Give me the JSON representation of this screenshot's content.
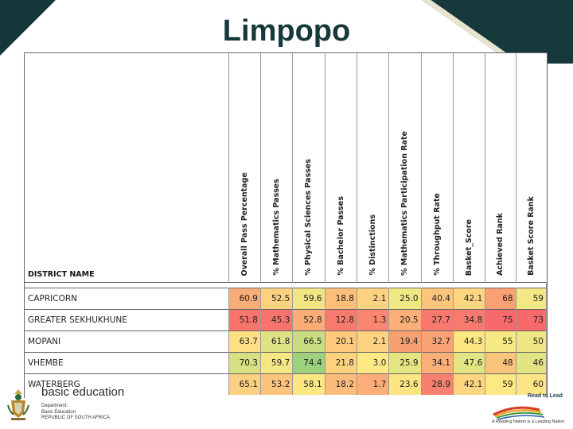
{
  "title": "Limpopo",
  "table": {
    "district_header": "DISTRICT NAME",
    "columns": [
      "Overall  Pass Percentage",
      "% Mathematics Passes",
      "% Physical Sciences Passes",
      "% Bachelor Passes",
      "% Distinctions",
      "% Mathematics Participation Rate",
      "% Throughput Rate",
      "Basket_Score",
      "Achieved Rank",
      "Basket Score Rank"
    ],
    "rows": [
      {
        "name": "CAPRICORN",
        "values": [
          "60.9",
          "52.5",
          "59.6",
          "18.8",
          "2.1",
          "25.0",
          "40.4",
          "42.1",
          "68",
          "59"
        ],
        "colors": [
          "#f8ad78",
          "#fcd281",
          "#f2e683",
          "#fcbf7b",
          "#fdd281",
          "#f0e983",
          "#fcc47c",
          "#fed581",
          "#f9a173",
          "#f5e884"
        ]
      },
      {
        "name": "GREATER SEKHUKHUNE",
        "values": [
          "51.8",
          "45.3",
          "52.8",
          "12.8",
          "1.3",
          "20.5",
          "27.7",
          "34.8",
          "75",
          "73"
        ],
        "colors": [
          "#f8746d",
          "#f8736d",
          "#fbac77",
          "#f8796e",
          "#f98670",
          "#fcae78",
          "#f8786e",
          "#f8796e",
          "#f8696b",
          "#f8696b"
        ]
      },
      {
        "name": "MOPANI",
        "values": [
          "63.7",
          "61.8",
          "66.5",
          "20.1",
          "2.1",
          "19.4",
          "32.7",
          "44.3",
          "55",
          "50"
        ],
        "colors": [
          "#fde083",
          "#dfe282",
          "#c7dd80",
          "#fec97d",
          "#fdd281",
          "#f9a073",
          "#f9a274",
          "#fee683",
          "#f7e984",
          "#eee683"
        ]
      },
      {
        "name": "VHEMBE",
        "values": [
          "70.3",
          "59.7",
          "74.4",
          "21.8",
          "3.0",
          "25.9",
          "34.1",
          "47.6",
          "48",
          "46"
        ],
        "colors": [
          "#d6e082",
          "#f4e884",
          "#9dd17e",
          "#fdd380",
          "#ffe984",
          "#e4e483",
          "#fbb078",
          "#e3e483",
          "#fbc47c",
          "#e2e382"
        ]
      },
      {
        "name": "WATERBERG",
        "values": [
          "65.1",
          "53.2",
          "58.1",
          "18.2",
          "1.7",
          "23.6",
          "28.9",
          "42.1",
          "59",
          "60"
        ],
        "colors": [
          "#fbd080",
          "#fcc47c",
          "#fde783",
          "#fcbc7b",
          "#fbae77",
          "#fee583",
          "#f8806f",
          "#fed581",
          "#fde983",
          "#fee583"
        ]
      }
    ]
  },
  "footer": {
    "brand_line1": "basic education",
    "dept_line1": "Department:",
    "dept_line2": "Basic Education",
    "dept_line3": "REPUBLIC OF SOUTH AFRICA",
    "lead_title": "Read to Lead",
    "lead_tagline": "A Reading Nation is a Leading Nation"
  }
}
